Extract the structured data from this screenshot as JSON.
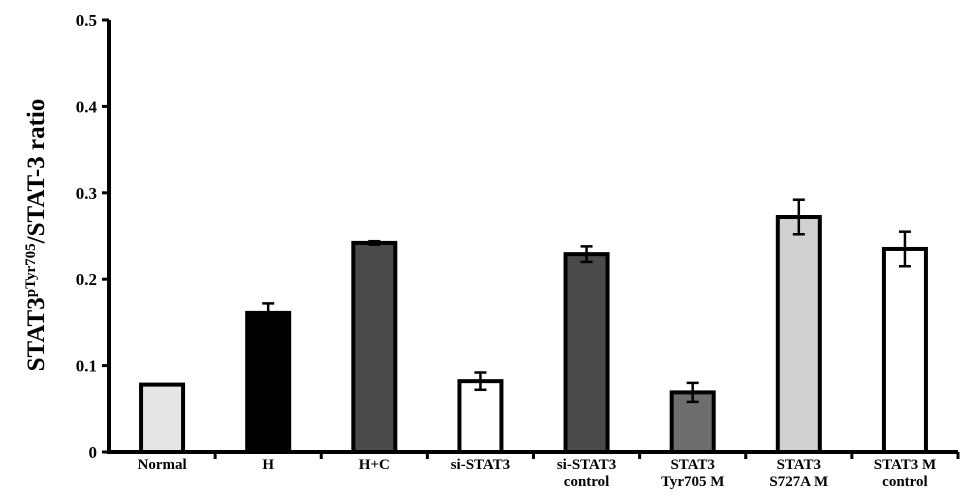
{
  "chart_data": {
    "type": "bar",
    "title": "",
    "xlabel": "",
    "ylabel": {
      "prefix": "STAT3",
      "superscript": "pTyr705",
      "suffix": "/STAT-3 ratio"
    },
    "ylim": [
      0,
      0.5
    ],
    "yticks": [
      {
        "value": 0,
        "label": "0"
      },
      {
        "value": 0.1,
        "label": "0.1"
      },
      {
        "value": 0.2,
        "label": "0.2"
      },
      {
        "value": 0.3,
        "label": "0.3"
      },
      {
        "value": 0.4,
        "label": "0.4"
      },
      {
        "value": 0.5,
        "label": "0.5"
      }
    ],
    "grid": false,
    "legend": "none",
    "categories": [
      [
        "Normal"
      ],
      [
        "H"
      ],
      [
        "H+C"
      ],
      [
        "si-STAT3"
      ],
      [
        "si-STAT3",
        "control"
      ],
      [
        "STAT3",
        "Tyr705 M"
      ],
      [
        "STAT3",
        "S727A M"
      ],
      [
        "STAT3 M",
        "control"
      ]
    ],
    "values": [
      0.078,
      0.161,
      0.242,
      0.082,
      0.229,
      0.069,
      0.272,
      0.235
    ],
    "errors": [
      0,
      0.011,
      0.002,
      0.01,
      0.009,
      0.011,
      0.02,
      0.02
    ],
    "colors": [
      "#e6e6e6",
      "#000000",
      "#4a4a4a",
      "#ffffff",
      "#4a4a4a",
      "#6e6e6e",
      "#d0d0d0",
      "#ffffff"
    ]
  }
}
